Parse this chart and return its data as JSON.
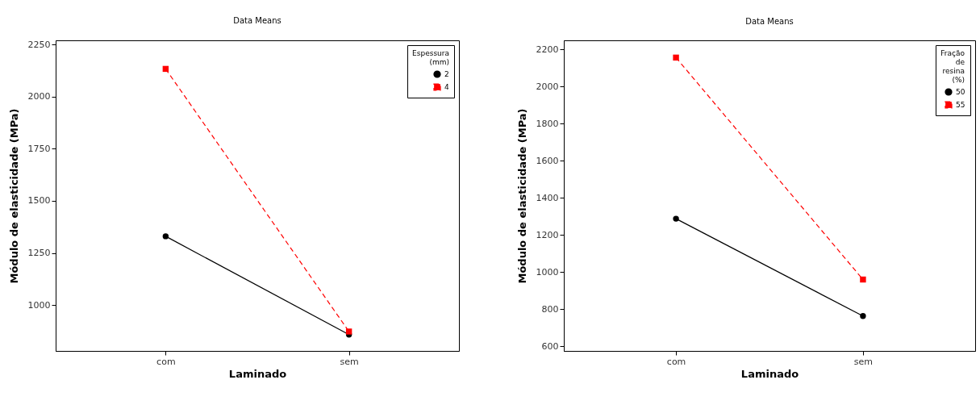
{
  "chart_data": [
    {
      "type": "line",
      "title": "Data Means",
      "xlabel": "Laminado",
      "ylabel": "Módulo de elasticidade (MPa)",
      "legend_title": "Espessura (mm)",
      "categories": [
        "com",
        "sem"
      ],
      "ylim": [
        780,
        2270
      ],
      "yticks": [
        1000,
        1250,
        1500,
        1750,
        2000,
        2250
      ],
      "grid": false,
      "legend": "top right",
      "series": [
        {
          "name": "2",
          "color": "#000000",
          "values": [
            1330,
            858
          ],
          "marker": "circle",
          "line_style": "solid"
        },
        {
          "name": "4",
          "color": "#ff0000",
          "values": [
            2133,
            873
          ],
          "marker": "square",
          "line_style": "dashed"
        }
      ]
    },
    {
      "type": "line",
      "title": "Data Means",
      "xlabel": "Laminado",
      "ylabel": "Módulo de elasticidade (MPa)",
      "legend_title": "Fração de resina (%)",
      "categories": [
        "com",
        "sem"
      ],
      "ylim": [
        575,
        2250
      ],
      "yticks": [
        600,
        800,
        1000,
        1200,
        1400,
        1600,
        1800,
        2000,
        2200
      ],
      "grid": false,
      "legend": "top right",
      "series": [
        {
          "name": "50",
          "color": "#000000",
          "values": [
            1288,
            763
          ],
          "marker": "circle",
          "line_style": "solid"
        },
        {
          "name": "55",
          "color": "#ff0000",
          "values": [
            2157,
            960
          ],
          "marker": "square",
          "line_style": "dashed"
        }
      ]
    }
  ]
}
